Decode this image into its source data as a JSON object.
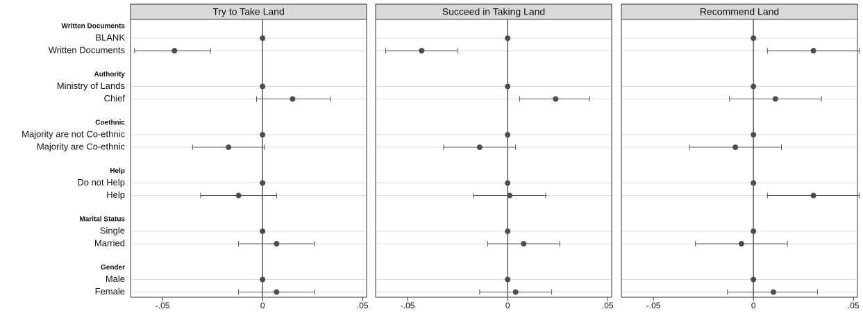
{
  "chart_data": {
    "type": "coefficient-plot",
    "panels": [
      {
        "title": "Try to Take Land",
        "values": [
          0,
          -0.044,
          0,
          0.015,
          0,
          -0.017,
          0,
          -0.012,
          0,
          0.007,
          0,
          0.007
        ],
        "lower": [
          0,
          -0.064,
          0,
          -0.003,
          0,
          -0.035,
          0,
          -0.031,
          0,
          -0.012,
          0,
          -0.012
        ],
        "upper": [
          0,
          -0.026,
          0,
          0.034,
          0,
          0.001,
          0,
          0.007,
          0,
          0.026,
          0,
          0.026
        ]
      },
      {
        "title": "Succeed in Taking Land",
        "values": [
          0,
          -0.043,
          0,
          0.024,
          0,
          -0.014,
          0,
          0.001,
          0,
          0.008,
          0,
          0.004
        ],
        "lower": [
          0,
          -0.061,
          0,
          0.006,
          0,
          -0.032,
          0,
          -0.017,
          0,
          -0.01,
          0,
          -0.014
        ],
        "upper": [
          0,
          -0.025,
          0,
          0.041,
          0,
          0.004,
          0,
          0.019,
          0,
          0.026,
          0,
          0.022
        ]
      },
      {
        "title": "Recommend Land",
        "values": [
          0,
          0.03,
          0,
          0.011,
          0,
          -0.009,
          0,
          0.03,
          0,
          -0.006,
          0,
          0.01
        ],
        "lower": [
          0,
          0.007,
          0,
          -0.012,
          0,
          -0.032,
          0,
          0.007,
          0,
          -0.029,
          0,
          -0.013
        ],
        "upper": [
          0,
          0.053,
          0,
          0.034,
          0,
          0.014,
          0,
          0.053,
          0,
          0.017,
          0,
          0.032
        ]
      }
    ],
    "groups": [
      {
        "label": "Written Documents",
        "levels": [
          "BLANK",
          "Written Documents"
        ]
      },
      {
        "label": "Authority",
        "levels": [
          "Ministry of Lands",
          "Chief"
        ]
      },
      {
        "label": "Coethnic",
        "levels": [
          "Majority are not Co-ethnic",
          "Majority are Co-ethnic"
        ]
      },
      {
        "label": "Help",
        "levels": [
          "Do not Help",
          "Help"
        ]
      },
      {
        "label": "Marital Status",
        "levels": [
          "Single",
          "Married"
        ]
      },
      {
        "label": "Gender",
        "levels": [
          "Male",
          "Female"
        ]
      }
    ],
    "x_ticks": [
      -0.05,
      0,
      0.05
    ],
    "x_tick_labels": [
      "-.05",
      "0",
      ".05"
    ],
    "xlim": [
      -0.066,
      0.052
    ],
    "grid": true,
    "reference_line": 0,
    "colors": {
      "point": "#4d4d4d",
      "line": "#555555",
      "strip_fill": "#d9d9d9",
      "grid": "#dddddd"
    }
  }
}
